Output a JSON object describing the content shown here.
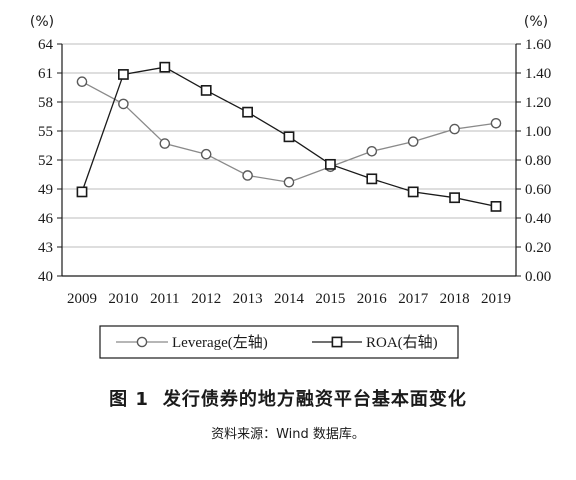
{
  "figure": {
    "number": "图 1",
    "title": "发行债券的地方融资平台基本面变化",
    "source": "资料来源：Wind 数据库。"
  },
  "chart_data": {
    "type": "line",
    "x": [
      "2009",
      "2010",
      "2011",
      "2012",
      "2013",
      "2014",
      "2015",
      "2016",
      "2017",
      "2018",
      "2019"
    ],
    "series": [
      {
        "name": "Leverage(左轴)",
        "axis": "left",
        "marker": "circle",
        "color": "#8a8a8a",
        "values": [
          60.1,
          57.8,
          53.7,
          52.6,
          50.4,
          49.7,
          51.3,
          52.9,
          53.9,
          55.2,
          55.8
        ]
      },
      {
        "name": "ROA(右轴)",
        "axis": "right",
        "marker": "square",
        "color": "#1a1a1a",
        "values": [
          0.58,
          1.39,
          1.44,
          1.28,
          1.13,
          0.96,
          0.77,
          0.67,
          0.58,
          0.54,
          0.48
        ]
      }
    ],
    "left_axis": {
      "unit": "(%)",
      "ylim": [
        40,
        64
      ],
      "ticks": [
        "40",
        "43",
        "46",
        "49",
        "52",
        "55",
        "58",
        "61",
        "64"
      ]
    },
    "right_axis": {
      "unit": "(%)",
      "ylim": [
        0,
        1.6
      ],
      "ticks": [
        "0.00",
        "0.20",
        "0.40",
        "0.60",
        "0.80",
        "1.00",
        "1.20",
        "1.40",
        "1.60"
      ]
    },
    "grid": true,
    "legend": "bottom"
  }
}
